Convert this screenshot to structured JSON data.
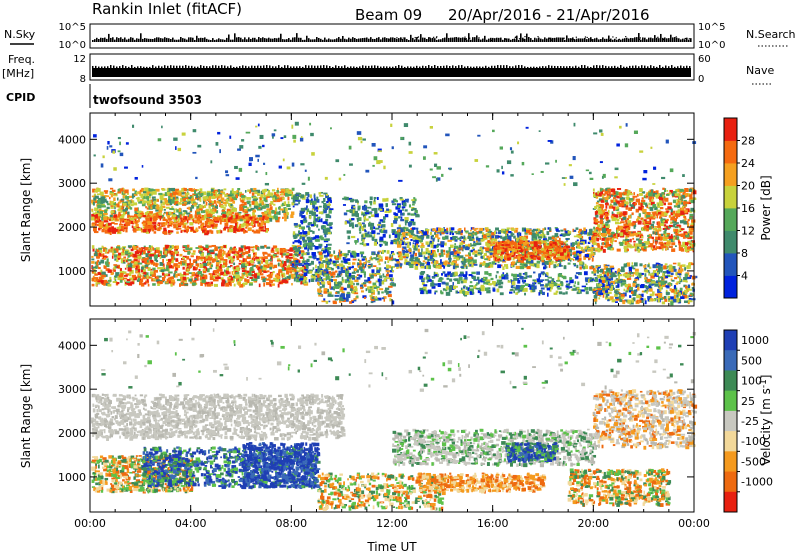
{
  "header": {
    "station": "Rankin Inlet (fitACF)",
    "beam": "Beam 09",
    "date_range": "20/Apr/2016 - 21/Apr/2016"
  },
  "top_panels": {
    "nsky_label": "N.Sky",
    "nsky_ticks": [
      "10^5",
      "10^0"
    ],
    "nsearch_label": "N.Search",
    "nsearch_ticks": [
      "10^5",
      "10^0"
    ],
    "freq_label": "Freq.",
    "freq_unit": "[MHz]",
    "freq_ticks": [
      "12",
      "8"
    ],
    "nave_label": "Nave",
    "nave_ticks": [
      "60",
      "0"
    ],
    "cpid_label": "CPID",
    "cpid_value": "twofsound 3503"
  },
  "chart_data": [
    {
      "type": "heatmap",
      "title": "",
      "ylabel": "Slant Range [km]",
      "xlabel": "",
      "x_ticks": [
        "00:00",
        "04:00",
        "08:00",
        "12:00",
        "16:00",
        "20:00",
        "00:00"
      ],
      "y_ticks": [
        1000,
        2000,
        3000,
        4000
      ],
      "ylim": [
        200,
        4600
      ],
      "xlim_hours": [
        0,
        24
      ],
      "colorbar": {
        "label": "Power [dB]",
        "ticks": [
          "4",
          "8",
          "12",
          "16",
          "20",
          "24",
          "28"
        ],
        "colors": [
          "#0022dd",
          "#2255bb",
          "#3f8a6c",
          "#55a85a",
          "#c8d23c",
          "#f5a020",
          "#f56a10",
          "#e82010"
        ]
      }
    },
    {
      "type": "heatmap",
      "title": "",
      "ylabel": "Slant Range [km]",
      "xlabel": "Time UT",
      "x_ticks": [
        "00:00",
        "04:00",
        "08:00",
        "12:00",
        "16:00",
        "20:00",
        "00:00"
      ],
      "y_ticks": [
        1000,
        2000,
        3000,
        4000
      ],
      "ylim": [
        200,
        4600
      ],
      "xlim_hours": [
        0,
        24
      ],
      "colorbar": {
        "label": "Velocity [m s^-1]",
        "ticks": [
          "1000",
          "500",
          "100",
          "25",
          "-25",
          "-100",
          "-500",
          "-1000"
        ],
        "colors": [
          "#1f3fb4",
          "#3a6ab8",
          "#3d8a55",
          "#5dc24a",
          "#c8c8c0",
          "#f2d89a",
          "#f59a1e",
          "#ee6a10",
          "#e82010"
        ]
      }
    }
  ]
}
